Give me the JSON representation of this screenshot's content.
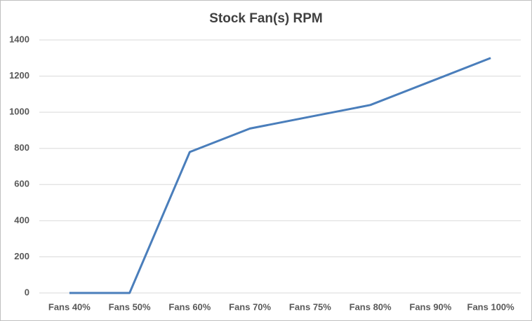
{
  "chart_data": {
    "type": "line",
    "title": "Stock Fan(s) RPM",
    "categories": [
      "Fans 40%",
      "Fans 50%",
      "Fans 60%",
      "Fans 70%",
      "Fans 75%",
      "Fans 80%",
      "Fans 90%",
      "Fans 100%"
    ],
    "series": [
      {
        "name": "RPM",
        "color": "#4a7ebb",
        "values": [
          0,
          0,
          780,
          910,
          975,
          1040,
          1170,
          1300
        ]
      }
    ],
    "ylim": [
      0,
      1400
    ],
    "yticks": [
      0,
      200,
      400,
      600,
      800,
      1000,
      1200,
      1400
    ],
    "grid": true
  }
}
